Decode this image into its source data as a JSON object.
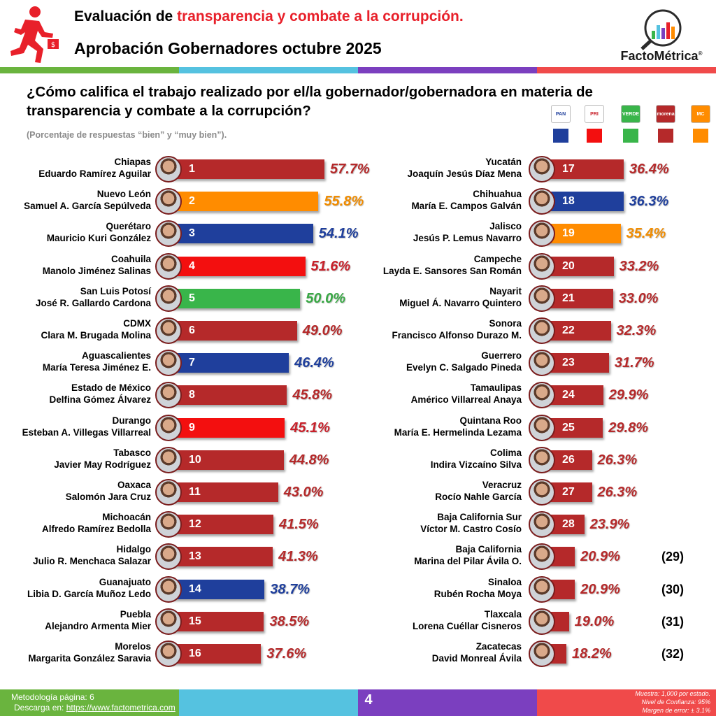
{
  "header": {
    "title_prefix": "Evaluación de ",
    "title_highlight": "transparencia y combate a la corrupción.",
    "subtitle": "Aprobación Gobernadores octubre 2025",
    "logo_text": "FactoMétrica",
    "logo_reg": "®"
  },
  "question": "¿Cómo califica el trabajo realizado por el/la gobernador/gobernadora en materia de transparencia y combate a la corrupción?",
  "note": "(Porcentaje de respuestas “bien” y “muy bien”).",
  "parties": [
    {
      "name": "PAN",
      "color": "#1f3f9c"
    },
    {
      "name": "PRI",
      "color": "#f30f0f"
    },
    {
      "name": "VERDE",
      "color": "#39b54a"
    },
    {
      "name": "morena",
      "color": "#b5292a"
    },
    {
      "name": "MC",
      "color": "#ff8c00"
    }
  ],
  "chart_data": {
    "type": "bar",
    "orientation": "horizontal",
    "value_suffix": "%",
    "xlim": [
      0,
      60
    ],
    "rows": [
      {
        "state": "Chiapas",
        "governor": "Eduardo Ramírez Aguilar",
        "rank": "1",
        "value": 57.7,
        "label": "57.7%",
        "party": "morena"
      },
      {
        "state": "Nuevo León",
        "governor": "Samuel A. García Sepúlveda",
        "rank": "2",
        "value": 55.8,
        "label": "55.8%",
        "party": "MC"
      },
      {
        "state": "Querétaro",
        "governor": "Mauricio Kuri González",
        "rank": "3",
        "value": 54.1,
        "label": "54.1%",
        "party": "PAN"
      },
      {
        "state": "Coahuila",
        "governor": "Manolo Jiménez Salinas",
        "rank": "4",
        "value": 51.6,
        "label": "51.6%",
        "party": "PRI"
      },
      {
        "state": "San Luis Potosí",
        "governor": "José R. Gallardo Cardona",
        "rank": "5",
        "value": 50.0,
        "label": "50.0%",
        "party": "VERDE"
      },
      {
        "state": "CDMX",
        "governor": "Clara M. Brugada Molina",
        "rank": "6",
        "value": 49.0,
        "label": "49.0%",
        "party": "morena"
      },
      {
        "state": "Aguascalientes",
        "governor": "María Teresa Jiménez E.",
        "rank": "7",
        "value": 46.4,
        "label": "46.4%",
        "party": "PAN"
      },
      {
        "state": "Estado de México",
        "governor": "Delfina Gómez Álvarez",
        "rank": "8",
        "value": 45.8,
        "label": "45.8%",
        "party": "morena"
      },
      {
        "state": "Durango",
        "governor": "Esteban A. Villegas Villarreal",
        "rank": "9",
        "value": 45.1,
        "label": "45.1%",
        "party": "PRI"
      },
      {
        "state": "Tabasco",
        "governor": "Javier May Rodríguez",
        "rank": "10",
        "value": 44.8,
        "label": "44.8%",
        "party": "morena"
      },
      {
        "state": "Oaxaca",
        "governor": "Salomón Jara Cruz",
        "rank": "11",
        "value": 43.0,
        "label": "43.0%",
        "party": "morena"
      },
      {
        "state": "Michoacán",
        "governor": "Alfredo Ramírez Bedolla",
        "rank": "12",
        "value": 41.5,
        "label": "41.5%",
        "party": "morena"
      },
      {
        "state": "Hidalgo",
        "governor": "Julio R. Menchaca Salazar",
        "rank": "13",
        "value": 41.3,
        "label": "41.3%",
        "party": "morena"
      },
      {
        "state": "Guanajuato",
        "governor": "Libia D. García Muñoz Ledo",
        "rank": "14",
        "value": 38.7,
        "label": "38.7%",
        "party": "PAN"
      },
      {
        "state": "Puebla",
        "governor": "Alejandro Armenta Mier",
        "rank": "15",
        "value": 38.5,
        "label": "38.5%",
        "party": "morena"
      },
      {
        "state": "Morelos",
        "governor": "Margarita González Saravia",
        "rank": "16",
        "value": 37.6,
        "label": "37.6%",
        "party": "morena"
      },
      {
        "state": "Yucatán",
        "governor": "Joaquín Jesús Díaz Mena",
        "rank": "17",
        "value": 36.4,
        "label": "36.4%",
        "party": "morena"
      },
      {
        "state": "Chihuahua",
        "governor": "María E. Campos Galván",
        "rank": "18",
        "value": 36.3,
        "label": "36.3%",
        "party": "PAN"
      },
      {
        "state": "Jalisco",
        "governor": "Jesús P. Lemus Navarro",
        "rank": "19",
        "value": 35.4,
        "label": "35.4%",
        "party": "MC"
      },
      {
        "state": "Campeche",
        "governor": "Layda E. Sansores San Román",
        "rank": "20",
        "value": 33.2,
        "label": "33.2%",
        "party": "morena"
      },
      {
        "state": "Nayarit",
        "governor": "Miguel Á. Navarro Quintero",
        "rank": "21",
        "value": 33.0,
        "label": "33.0%",
        "party": "morena"
      },
      {
        "state": "Sonora",
        "governor": "Francisco Alfonso Durazo M.",
        "rank": "22",
        "value": 32.3,
        "label": "32.3%",
        "party": "morena"
      },
      {
        "state": "Guerrero",
        "governor": "Evelyn C. Salgado Pineda",
        "rank": "23",
        "value": 31.7,
        "label": "31.7%",
        "party": "morena"
      },
      {
        "state": "Tamaulipas",
        "governor": "Américo Villarreal Anaya",
        "rank": "24",
        "value": 29.9,
        "label": "29.9%",
        "party": "morena"
      },
      {
        "state": "Quintana Roo",
        "governor": "María E. Hermelinda Lezama",
        "rank": "25",
        "value": 29.8,
        "label": "29.8%",
        "party": "morena"
      },
      {
        "state": "Colima",
        "governor": "Indira Vizcaíno Silva",
        "rank": "26",
        "value": 26.3,
        "label": "26.3%",
        "party": "morena"
      },
      {
        "state": "Veracruz",
        "governor": "Rocío Nahle García",
        "rank": "27",
        "value": 26.3,
        "label": "26.3%",
        "party": "morena"
      },
      {
        "state": "Baja California Sur",
        "governor": "Víctor M. Castro Cosío",
        "rank": "28",
        "value": 23.9,
        "label": "23.9%",
        "party": "morena"
      },
      {
        "state": "Baja California",
        "governor": "Marina del Pilar Ávila O.",
        "rank": "(29)",
        "value": 20.9,
        "label": "20.9%",
        "party": "morena"
      },
      {
        "state": "Sinaloa",
        "governor": "Rubén Rocha Moya",
        "rank": "(30)",
        "value": 20.9,
        "label": "20.9%",
        "party": "morena"
      },
      {
        "state": "Tlaxcala",
        "governor": "Lorena Cuéllar Cisneros",
        "rank": "(31)",
        "value": 19.0,
        "label": "19.0%",
        "party": "morena"
      },
      {
        "state": "Zacatecas",
        "governor": "David Monreal Ávila",
        "rank": "(32)",
        "value": 18.2,
        "label": "18.2%",
        "party": "morena"
      }
    ]
  },
  "footer": {
    "methodology": "Metodología página: 6",
    "download_label": "Descarga en: ",
    "url": "https://www.factometrica.com",
    "page": "4",
    "sample": "Muestra:  1,000 por estado.",
    "confidence": "Nivel de Confianza: 95%",
    "error": "Margen de error: ± 3.1%"
  },
  "stripe_colors": [
    "#6ab43e",
    "#55c2e0",
    "#7b3fbf",
    "#f04a4a"
  ],
  "value_text_colors": {
    "PAN": "#1f3f9c",
    "PRI": "#c8202a",
    "VERDE": "#39a845",
    "morena": "#b5292a",
    "MC": "#f08c00"
  }
}
